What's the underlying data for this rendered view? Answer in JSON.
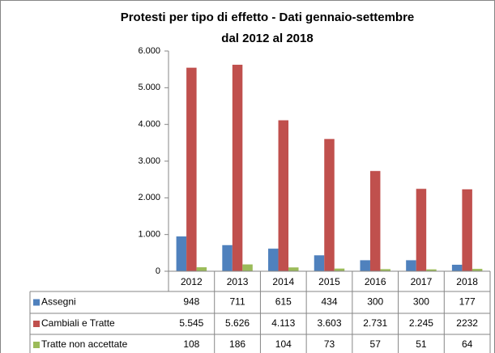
{
  "chart_data": {
    "type": "bar",
    "title": "Protesti per tipo di effetto - Dati gennaio-settembre",
    "subtitle": "dal 2012 al 2018",
    "categories": [
      "2012",
      "2013",
      "2014",
      "2015",
      "2016",
      "2017",
      "2018"
    ],
    "series": [
      {
        "name": "Assegni",
        "color": "#4f81bd",
        "values": [
          948,
          711,
          615,
          434,
          300,
          300,
          177
        ]
      },
      {
        "name": "Cambiali e Tratte",
        "color": "#c0504d",
        "values": [
          5545,
          5626,
          4113,
          3603,
          2731,
          2245,
          2232
        ],
        "value_labels": [
          "5.545",
          "5.626",
          "4.113",
          "3.603",
          "2.731",
          "2.245",
          "2232"
        ]
      },
      {
        "name": "Tratte non accettate",
        "color": "#9bbb59",
        "values": [
          108,
          186,
          104,
          73,
          57,
          51,
          64
        ]
      }
    ],
    "ylim": [
      0,
      6000
    ],
    "yticks": [
      0,
      {
        "value": 1000,
        "label": "1.000"
      },
      {
        "value": 2000,
        "label": "2.000"
      },
      {
        "value": 3000,
        "label": "3.000"
      },
      {
        "value": 4000,
        "label": "4.000"
      },
      {
        "value": 5000,
        "label": "5.000"
      },
      {
        "value": 6000,
        "label": "6.000"
      }
    ],
    "grid": false
  }
}
